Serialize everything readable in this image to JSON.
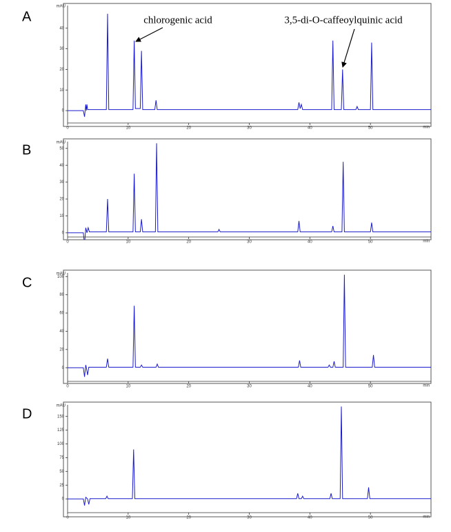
{
  "chart_data": [
    {
      "type": "line",
      "panel": "A",
      "y_label": "mAU",
      "x_label": "min",
      "color": "#1a1acc",
      "xlim": [
        0,
        60
      ],
      "xticks": [
        0,
        10,
        20,
        30,
        40,
        50
      ],
      "ylim": [
        -6,
        51
      ],
      "yticks": [
        0,
        10,
        20,
        30,
        40
      ],
      "annotations": [
        "chlorogenic acid",
        "3,5-di-O-caffeoylquinic acid"
      ],
      "x": [
        0,
        2.6,
        2.8,
        3.0,
        3.1,
        3.2,
        3.3,
        6.4,
        6.6,
        6.8,
        10.8,
        11.0,
        11.2,
        12.0,
        12.2,
        12.4,
        14.4,
        14.6,
        14.8,
        38.0,
        38.2,
        38.4,
        38.6,
        38.8,
        43.6,
        43.8,
        44.0,
        45.2,
        45.4,
        45.6,
        47.6,
        47.8,
        48.0,
        50.0,
        50.2,
        50.4,
        60
      ],
      "values": [
        0,
        0,
        -3,
        3,
        0,
        3,
        0.5,
        0.5,
        47,
        0.5,
        0.5,
        34,
        1,
        1,
        29,
        0.5,
        0.5,
        5,
        0.5,
        0.5,
        4,
        1,
        3,
        0.5,
        0.5,
        34,
        0.5,
        0.5,
        20,
        0.5,
        0.5,
        2,
        0.5,
        0.5,
        33,
        0.5,
        0.5
      ]
    },
    {
      "type": "line",
      "panel": "B",
      "y_label": "mAU",
      "x_label": "min",
      "color": "#1a1acc",
      "xlim": [
        0,
        60
      ],
      "xticks": [
        0,
        10,
        20,
        30,
        40,
        50
      ],
      "ylim": [
        -2.5,
        54
      ],
      "yticks": [
        0,
        10,
        20,
        30,
        40,
        50
      ],
      "x": [
        0,
        2.6,
        2.8,
        3.0,
        3.2,
        3.4,
        3.6,
        6.4,
        6.6,
        6.8,
        10.8,
        11.0,
        11.2,
        12.0,
        12.2,
        12.4,
        14.5,
        14.7,
        14.9,
        24.8,
        25.0,
        25.2,
        38.0,
        38.2,
        38.4,
        43.6,
        43.8,
        44.0,
        45.3,
        45.5,
        45.7,
        50.0,
        50.2,
        50.4,
        60
      ],
      "values": [
        0,
        0,
        -7,
        3,
        0,
        3,
        0.5,
        0.5,
        20,
        0.5,
        0.5,
        35,
        0.5,
        0.5,
        8,
        0.5,
        0.5,
        53,
        0.5,
        0.5,
        2,
        0.5,
        0.5,
        7,
        0.5,
        0.5,
        4,
        0.5,
        0.5,
        42,
        0.5,
        0.5,
        6,
        0.5,
        0.5
      ]
    },
    {
      "type": "line",
      "panel": "C",
      "y_label": "mAU",
      "x_label": "min",
      "color": "#1a1acc",
      "xlim": [
        0,
        60
      ],
      "xticks": [
        0,
        10,
        20,
        30,
        40,
        50
      ],
      "ylim": [
        -15,
        104
      ],
      "yticks": [
        0,
        20,
        40,
        60,
        80,
        100
      ],
      "x": [
        0,
        2.6,
        2.8,
        3.0,
        3.1,
        3.3,
        3.5,
        6.4,
        6.6,
        6.8,
        10.8,
        11.0,
        11.2,
        12.0,
        12.2,
        12.4,
        14.6,
        14.8,
        15.0,
        38.1,
        38.3,
        38.5,
        43.0,
        43.2,
        43.4,
        43.8,
        44.0,
        44.2,
        45.5,
        45.7,
        45.9,
        50.3,
        50.5,
        50.7,
        60
      ],
      "values": [
        0,
        0,
        -10,
        3,
        0,
        -8,
        0.5,
        0.5,
        10,
        0.5,
        0.5,
        68,
        0.5,
        0.5,
        3,
        0.5,
        0.5,
        4,
        0.5,
        0.5,
        8,
        0.5,
        0.5,
        3,
        0.5,
        0.5,
        7,
        0.5,
        0.5,
        102,
        0.5,
        0.5,
        14,
        0.5,
        0.5
      ]
    },
    {
      "type": "line",
      "panel": "D",
      "y_label": "mAU",
      "x_label": "min",
      "color": "#1a1acc",
      "xlim": [
        0,
        60
      ],
      "xticks": [
        0,
        10,
        20,
        30,
        40,
        50
      ],
      "ylim": [
        -25,
        171
      ],
      "yticks": [
        0,
        25,
        50,
        75,
        100,
        125,
        150
      ],
      "x": [
        0,
        2.6,
        2.8,
        3.0,
        3.3,
        3.5,
        3.7,
        6.3,
        6.5,
        6.7,
        10.7,
        10.9,
        11.1,
        37.8,
        38.0,
        38.2,
        38.6,
        38.8,
        39.0,
        43.3,
        43.5,
        43.7,
        45.0,
        45.2,
        45.4,
        49.5,
        49.7,
        49.9,
        60
      ],
      "values": [
        0,
        0,
        -12,
        3,
        0,
        -10,
        0.5,
        0.5,
        5,
        0.5,
        0.5,
        90,
        0.5,
        0.5,
        10,
        0.5,
        0.5,
        5,
        0.5,
        0.5,
        10,
        0.5,
        0.5,
        168,
        0.5,
        0.5,
        21,
        0.5,
        0.5
      ]
    }
  ]
}
